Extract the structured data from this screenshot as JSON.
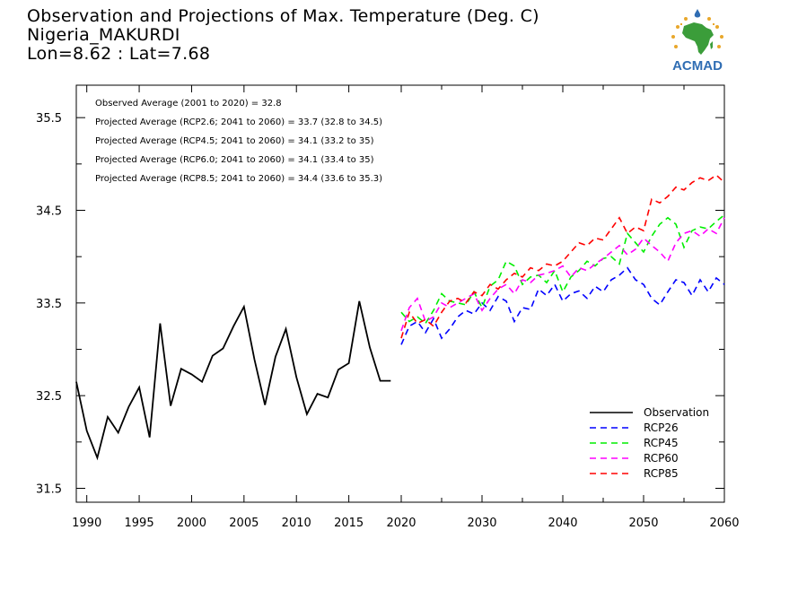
{
  "header": {
    "title": "Observation and Projections of Max. Temperature (Deg. C)",
    "location": "Nigeria_MAKURDI",
    "coords": "Lon=8.62 : Lat=7.68"
  },
  "logo": {
    "text": "ACMAD"
  },
  "chart_data": {
    "type": "line",
    "title": "Observation and Projections of Max. Temperature (Deg. C)",
    "xlim": [
      1989,
      2060
    ],
    "ylim": [
      31.35,
      35.85
    ],
    "grid": false,
    "legend_position": "bottom-right",
    "annotations": [
      "Observed Average (2001 to 2020) = 32.8",
      "Projected Average (RCP2.6; 2041 to 2060) = 33.7 (32.8 to 34.5)",
      "Projected Average (RCP4.5; 2041 to 2060) = 34.1 (33.2 to 35)",
      "Projected Average (RCP6.0; 2041 to 2060) = 34.1 (33.4 to 35)",
      "Projected Average (RCP8.5; 2041 to 2060) = 34.4 (33.6 to 35.3)"
    ],
    "y_ticks": [
      31.5,
      32.5,
      33.5,
      34.5,
      35.5
    ],
    "y_tick_labels": [
      "31.5",
      "32.5",
      "33.5",
      "34.5",
      "35.5"
    ],
    "x_ticks_left": [
      1990,
      1995,
      2000,
      2005,
      2010,
      2015,
      2020
    ],
    "x_tick_labels_left": [
      "1990",
      "1995",
      "2000",
      "2005",
      "2010",
      "2015",
      "2020"
    ],
    "x_ticks_right": [
      2030,
      2040,
      2050,
      2060
    ],
    "x_tick_labels_right": [
      "2030",
      "2040",
      "2050",
      "2060"
    ],
    "series": [
      {
        "name": "Observation",
        "color": "#000000",
        "dashed": false,
        "x": [
          1989,
          1990,
          1991,
          1992,
          1993,
          1994,
          1995,
          1996,
          1997,
          1998,
          1999,
          2000,
          2001,
          2002,
          2003,
          2004,
          2005,
          2006,
          2007,
          2008,
          2009,
          2010,
          2011,
          2012,
          2013,
          2014,
          2015,
          2016,
          2017,
          2018,
          2019
        ],
        "y": [
          32.65,
          32.12,
          31.83,
          32.27,
          32.1,
          32.38,
          32.59,
          32.05,
          33.28,
          32.39,
          32.79,
          32.73,
          32.65,
          32.93,
          33.01,
          33.25,
          33.46,
          32.89,
          32.4,
          32.92,
          33.22,
          32.7,
          32.3,
          32.52,
          32.48,
          32.78,
          32.85,
          33.52,
          33.02,
          32.66,
          32.66
        ]
      },
      {
        "name": "RCP26",
        "color": "#0000ff",
        "dashed": true,
        "x": [
          2020,
          2021,
          2022,
          2023,
          2024,
          2025,
          2026,
          2027,
          2028,
          2029,
          2030,
          2031,
          2032,
          2033,
          2034,
          2035,
          2036,
          2037,
          2038,
          2039,
          2040,
          2041,
          2042,
          2043,
          2044,
          2045,
          2046,
          2047,
          2048,
          2049,
          2050,
          2051,
          2052,
          2053,
          2054,
          2055,
          2056,
          2057,
          2058,
          2059,
          2060
        ],
        "y": [
          33.05,
          33.25,
          33.3,
          33.18,
          33.33,
          33.12,
          33.22,
          33.35,
          33.42,
          33.38,
          33.5,
          33.42,
          33.57,
          33.52,
          33.3,
          33.45,
          33.43,
          33.65,
          33.58,
          33.7,
          33.52,
          33.6,
          33.63,
          33.55,
          33.68,
          33.62,
          33.75,
          33.8,
          33.88,
          33.75,
          33.7,
          33.55,
          33.48,
          33.62,
          33.75,
          33.72,
          33.58,
          33.75,
          33.62,
          33.77,
          33.7
        ]
      },
      {
        "name": "RCP45",
        "color": "#00ee00",
        "dashed": true,
        "x": [
          2020,
          2021,
          2022,
          2023,
          2024,
          2025,
          2026,
          2027,
          2028,
          2029,
          2030,
          2031,
          2032,
          2033,
          2034,
          2035,
          2036,
          2037,
          2038,
          2039,
          2040,
          2041,
          2042,
          2043,
          2044,
          2045,
          2046,
          2047,
          2048,
          2049,
          2050,
          2051,
          2052,
          2053,
          2054,
          2055,
          2056,
          2057,
          2058,
          2059,
          2060
        ],
        "y": [
          33.4,
          33.3,
          33.35,
          33.28,
          33.42,
          33.6,
          33.52,
          33.5,
          33.48,
          33.62,
          33.45,
          33.68,
          33.75,
          33.95,
          33.9,
          33.7,
          33.78,
          33.8,
          33.72,
          33.85,
          33.62,
          33.78,
          33.85,
          33.95,
          33.9,
          33.98,
          34.0,
          33.92,
          34.25,
          34.15,
          34.05,
          34.22,
          34.35,
          34.42,
          34.35,
          34.1,
          34.28,
          34.32,
          34.3,
          34.38,
          34.45
        ]
      },
      {
        "name": "RCP60",
        "color": "#ff00ff",
        "dashed": true,
        "x": [
          2020,
          2021,
          2022,
          2023,
          2024,
          2025,
          2026,
          2027,
          2028,
          2029,
          2030,
          2031,
          2032,
          2033,
          2034,
          2035,
          2036,
          2037,
          2038,
          2039,
          2040,
          2041,
          2042,
          2043,
          2044,
          2045,
          2046,
          2047,
          2048,
          2049,
          2050,
          2051,
          2052,
          2053,
          2054,
          2055,
          2056,
          2057,
          2058,
          2059,
          2060
        ],
        "y": [
          33.2,
          33.45,
          33.55,
          33.3,
          33.35,
          33.5,
          33.45,
          33.5,
          33.55,
          33.6,
          33.42,
          33.55,
          33.65,
          33.7,
          33.6,
          33.75,
          33.72,
          33.8,
          33.82,
          33.85,
          33.9,
          33.78,
          33.88,
          33.85,
          33.92,
          33.98,
          34.05,
          34.12,
          34.02,
          34.08,
          34.2,
          34.12,
          34.05,
          33.95,
          34.15,
          34.25,
          34.28,
          34.22,
          34.3,
          34.25,
          34.42
        ]
      },
      {
        "name": "RCP85",
        "color": "#ff0000",
        "dashed": true,
        "x": [
          2020,
          2021,
          2022,
          2023,
          2024,
          2025,
          2026,
          2027,
          2028,
          2029,
          2030,
          2031,
          2032,
          2033,
          2034,
          2035,
          2036,
          2037,
          2038,
          2039,
          2040,
          2041,
          2042,
          2043,
          2044,
          2045,
          2046,
          2047,
          2048,
          2049,
          2050,
          2051,
          2052,
          2053,
          2054,
          2055,
          2056,
          2057,
          2058,
          2059,
          2060
        ],
        "y": [
          33.12,
          33.4,
          33.28,
          33.32,
          33.25,
          33.4,
          33.52,
          33.55,
          33.5,
          33.62,
          33.58,
          33.7,
          33.65,
          33.75,
          33.82,
          33.78,
          33.88,
          33.85,
          33.92,
          33.9,
          33.95,
          34.05,
          34.15,
          34.12,
          34.2,
          34.18,
          34.3,
          34.42,
          34.25,
          34.32,
          34.28,
          34.62,
          34.58,
          34.65,
          34.75,
          34.72,
          34.8,
          34.85,
          34.82,
          34.88,
          34.8
        ]
      }
    ]
  }
}
